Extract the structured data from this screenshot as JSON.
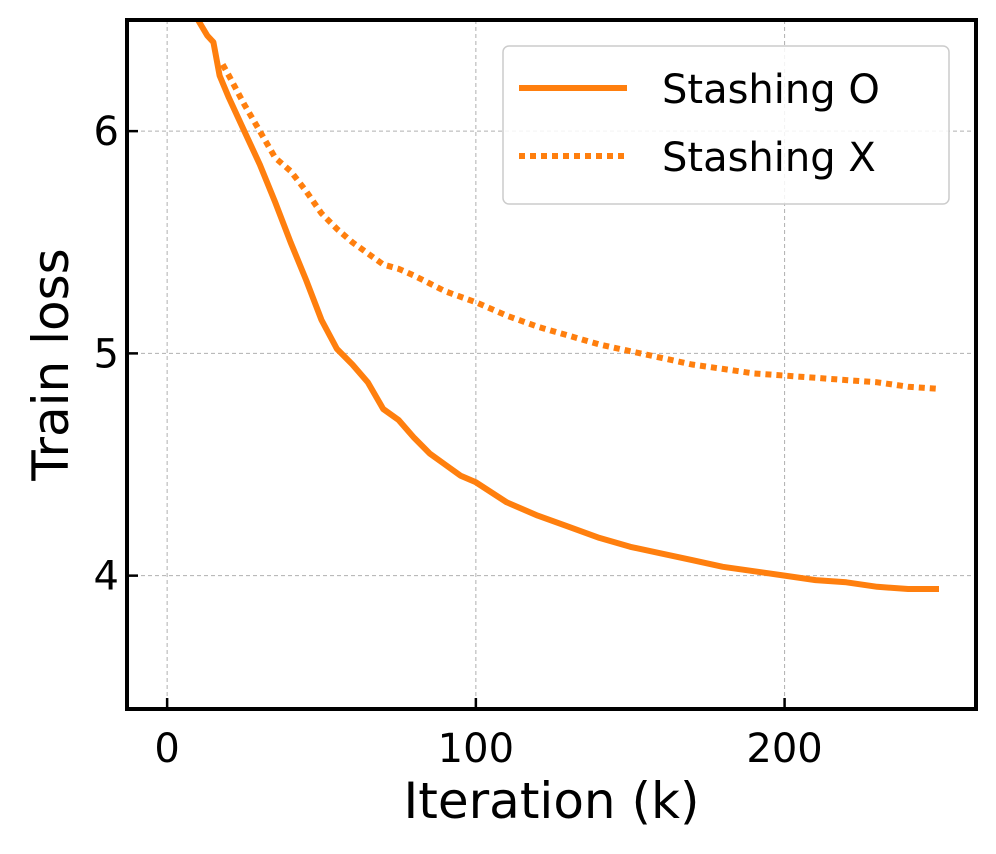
{
  "chart_data": {
    "type": "line",
    "title": "",
    "xlabel": "Iteration (k)",
    "ylabel": "Train loss",
    "xlim": [
      -13,
      262
    ],
    "ylim": [
      3.4,
      6.5
    ],
    "xticks": [
      0,
      100,
      200
    ],
    "xtick_labels": [
      "0",
      "100",
      "200"
    ],
    "yticks": [
      4,
      5,
      6
    ],
    "ytick_labels": [
      "4",
      "5",
      "6"
    ],
    "grid": true,
    "legend_position": "top-right",
    "color": "#ff7f0e",
    "series": [
      {
        "name": "Stashing O",
        "style": "solid",
        "x": [
          10,
          13,
          15,
          17,
          20,
          25,
          30,
          35,
          40,
          45,
          50,
          55,
          60,
          65,
          70,
          75,
          80,
          85,
          90,
          95,
          100,
          110,
          120,
          130,
          140,
          150,
          160,
          170,
          180,
          190,
          200,
          210,
          220,
          230,
          240,
          250
        ],
        "y": [
          6.5,
          6.43,
          6.4,
          6.25,
          6.15,
          6.0,
          5.85,
          5.68,
          5.5,
          5.33,
          5.15,
          5.02,
          4.95,
          4.87,
          4.75,
          4.7,
          4.62,
          4.55,
          4.5,
          4.45,
          4.42,
          4.33,
          4.27,
          4.22,
          4.17,
          4.13,
          4.1,
          4.07,
          4.04,
          4.02,
          4.0,
          3.98,
          3.97,
          3.95,
          3.94,
          3.94
        ]
      },
      {
        "name": "Stashing X",
        "style": "dotted",
        "x": [
          18,
          20,
          25,
          30,
          35,
          40,
          45,
          50,
          55,
          60,
          65,
          70,
          75,
          80,
          90,
          100,
          110,
          120,
          130,
          140,
          150,
          160,
          170,
          180,
          190,
          200,
          210,
          220,
          230,
          240,
          250
        ],
        "y": [
          6.3,
          6.25,
          6.12,
          6.0,
          5.88,
          5.82,
          5.73,
          5.63,
          5.56,
          5.5,
          5.45,
          5.4,
          5.38,
          5.35,
          5.28,
          5.23,
          5.17,
          5.12,
          5.08,
          5.04,
          5.01,
          4.98,
          4.95,
          4.93,
          4.91,
          4.9,
          4.89,
          4.88,
          4.87,
          4.85,
          4.84
        ]
      }
    ]
  }
}
